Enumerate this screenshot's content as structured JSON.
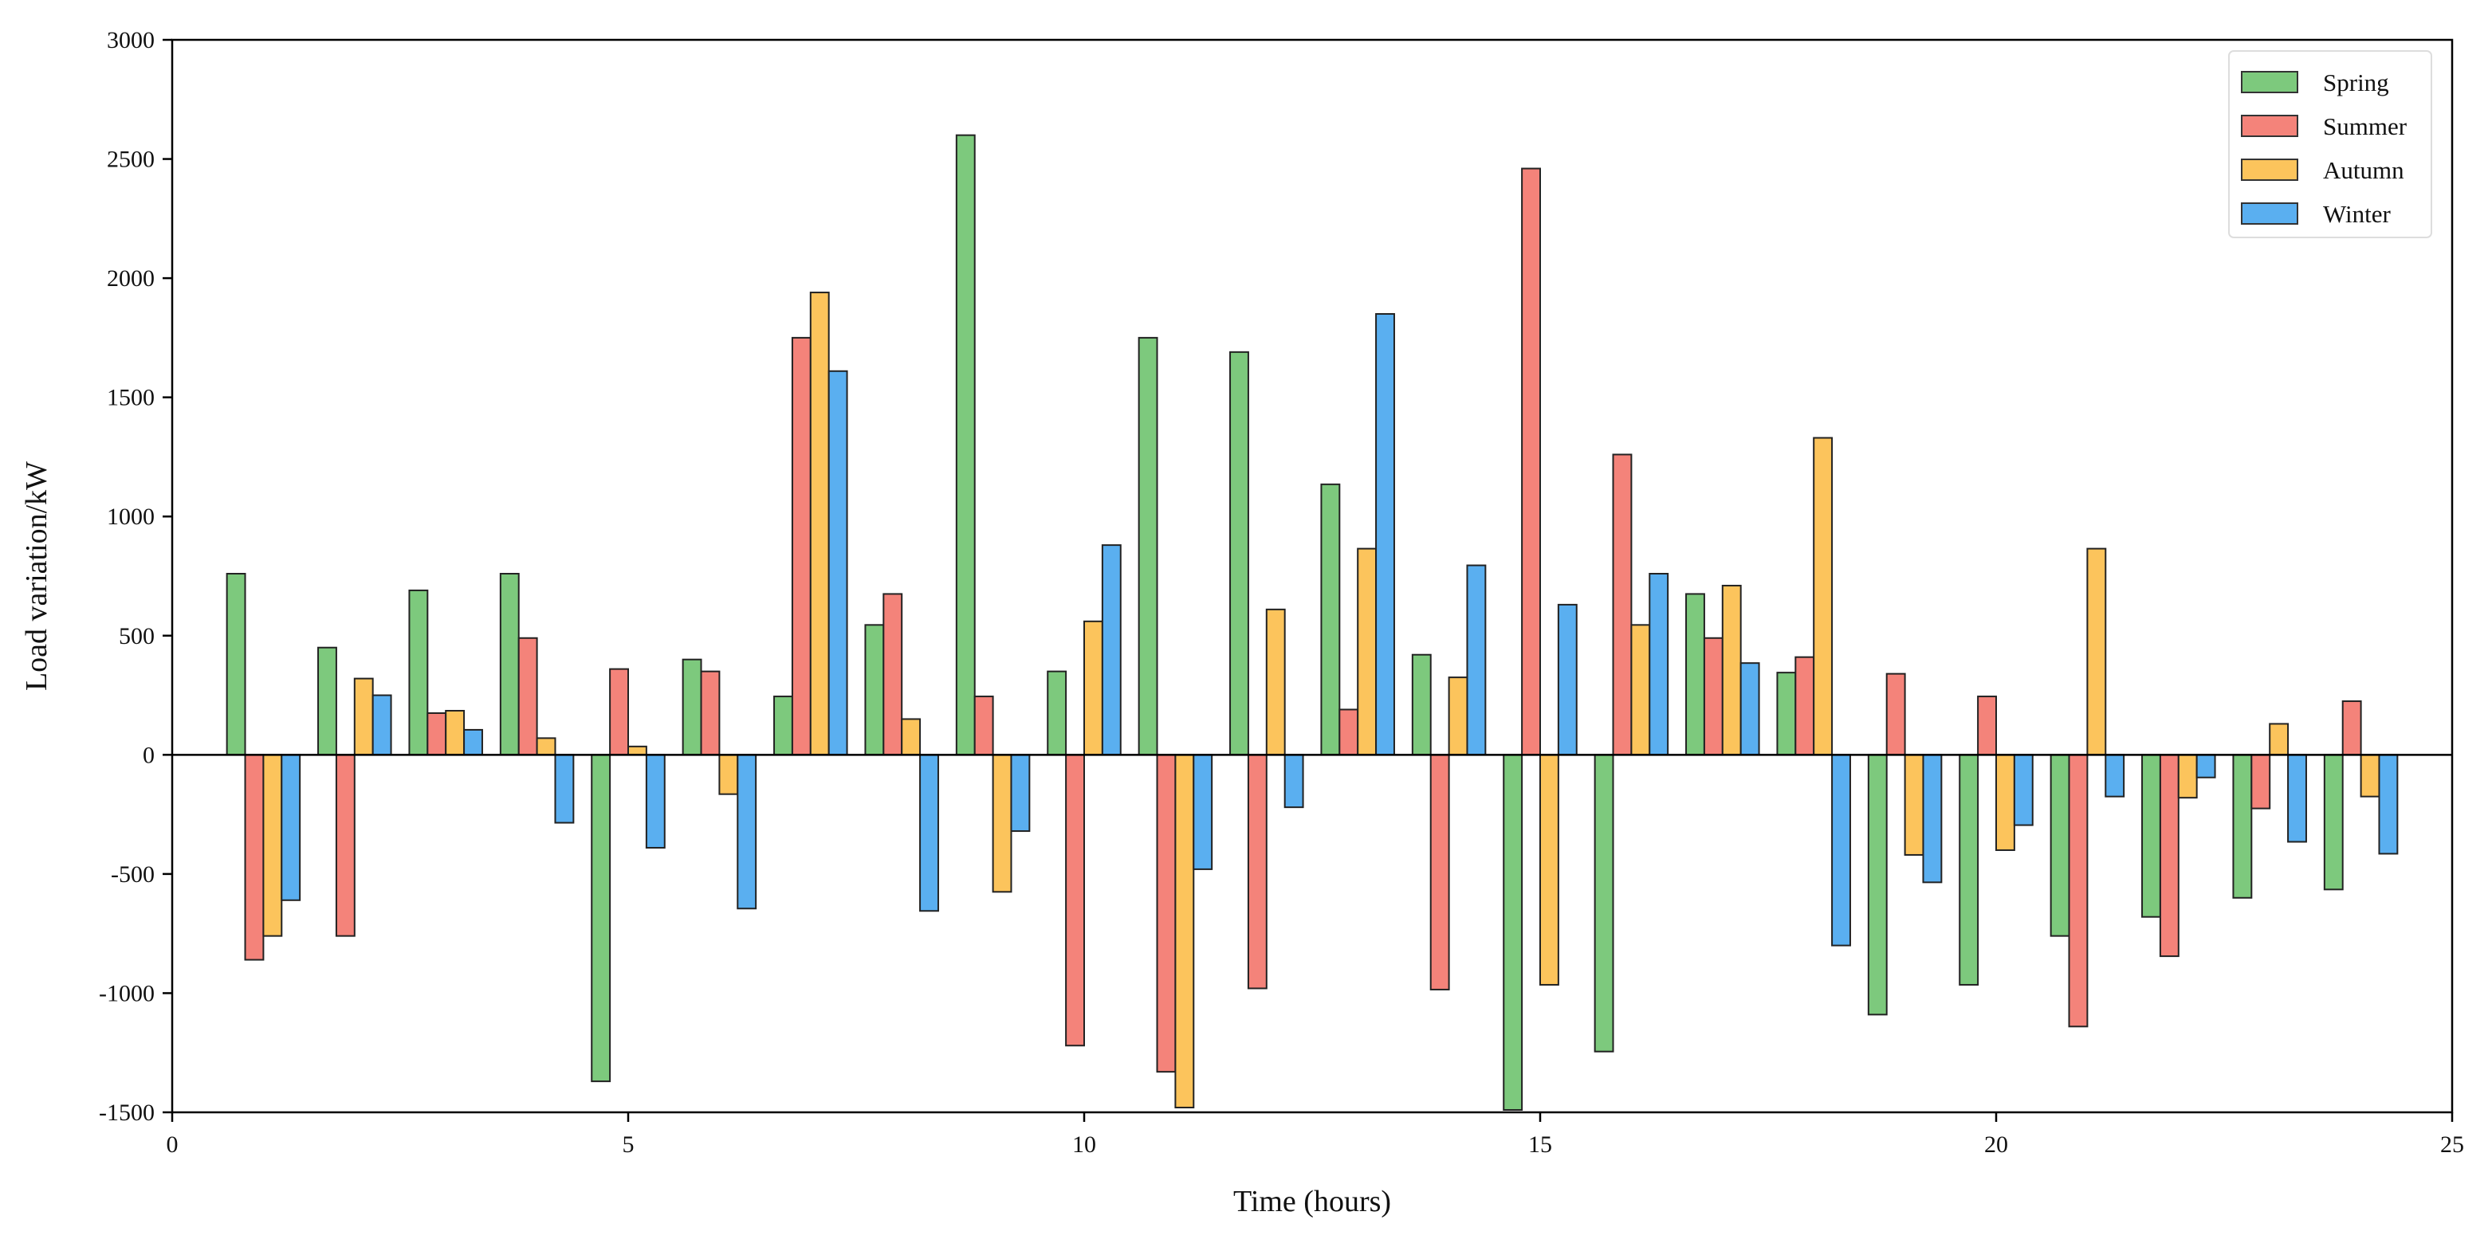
{
  "chart_data": {
    "type": "bar",
    "title": "",
    "xlabel": "Time (hours)",
    "ylabel": "Load variation/kW",
    "xlim": [
      0,
      25
    ],
    "ylim": [
      -1500,
      3000
    ],
    "xticks": [
      0,
      5,
      10,
      15,
      20,
      25
    ],
    "yticks": [
      -1500,
      -1000,
      -500,
      0,
      500,
      1000,
      1500,
      2000,
      2500,
      3000
    ],
    "grid": false,
    "legend_position": "top-right",
    "x": [
      1,
      2,
      3,
      4,
      5,
      6,
      7,
      8,
      9,
      10,
      11,
      12,
      13,
      14,
      15,
      16,
      17,
      18,
      19,
      20,
      21,
      22,
      23,
      24
    ],
    "series": [
      {
        "name": "Spring",
        "color": "#7dc97d",
        "values": [
          760,
          450,
          690,
          760,
          -1370,
          400,
          245,
          545,
          2600,
          350,
          1750,
          1690,
          1135,
          420,
          -1490,
          -1245,
          675,
          345,
          -1090,
          -965,
          -760,
          -680,
          -600,
          -565
        ]
      },
      {
        "name": "Summer",
        "color": "#f4837a",
        "values": [
          -860,
          -760,
          175,
          490,
          360,
          350,
          1750,
          675,
          245,
          -1220,
          -1330,
          -980,
          190,
          -985,
          2460,
          1260,
          490,
          410,
          340,
          245,
          -1140,
          -845,
          -225,
          225
        ]
      },
      {
        "name": "Autumn",
        "color": "#fcc45c",
        "values": [
          -760,
          320,
          185,
          70,
          35,
          -165,
          1940,
          150,
          -575,
          560,
          -1480,
          610,
          865,
          325,
          -965,
          545,
          710,
          1330,
          -420,
          -400,
          865,
          -180,
          130,
          -175
        ]
      },
      {
        "name": "Winter",
        "color": "#5aaff0",
        "values": [
          -610,
          250,
          105,
          -285,
          -390,
          -645,
          1610,
          -655,
          -320,
          880,
          -480,
          -220,
          1850,
          795,
          630,
          760,
          385,
          -800,
          -535,
          -295,
          -175,
          -95,
          -365,
          -415
        ]
      }
    ]
  }
}
